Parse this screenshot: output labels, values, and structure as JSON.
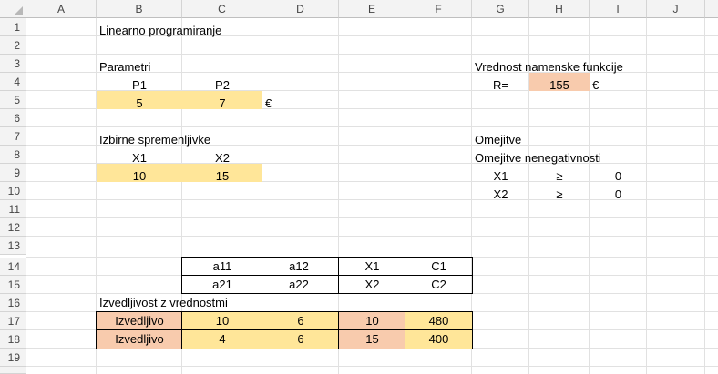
{
  "columns": [
    "A",
    "B",
    "C",
    "D",
    "E",
    "F",
    "G",
    "H",
    "I",
    "J"
  ],
  "rows": [
    "1",
    "2",
    "3",
    "4",
    "5",
    "6",
    "7",
    "8",
    "9",
    "10",
    "11",
    "12",
    "13",
    "14",
    "15",
    "16",
    "17",
    "18",
    "19"
  ],
  "cells": {
    "B1": "Linearno programiranje",
    "B3": "Parametri",
    "B4": "P1",
    "C4": "P2",
    "B5": "5",
    "C5": "7",
    "D5": "€",
    "B7": "Izbirne spremenljivke",
    "B8": "X1",
    "C8": "X2",
    "B9": "10",
    "C9": "15",
    "G3": "Vrednost namenske funkcije",
    "G4": "R=",
    "H4": "155",
    "I4": "€",
    "G7": "Omejitve",
    "G8": "Omejitve nenegativnosti",
    "G9": "X1",
    "H9": "≥",
    "I9": "0",
    "G10": "X2",
    "H10": "≥",
    "I10": "0",
    "C14": "a11",
    "D14": "a12",
    "E14": "X1",
    "F14": "C1",
    "C15": "a21",
    "D15": "a22",
    "E15": "X2",
    "F15": "C2",
    "B16": "Izvedljivost z vrednostmi",
    "B17": "Izvedljivo",
    "C17": "10",
    "D17": "6",
    "E17": "10",
    "F17": "480",
    "B18": "Izvedljivo",
    "C18": "4",
    "D18": "6",
    "E18": "15",
    "F18": "400"
  },
  "colors": {
    "yellow": "#ffe699",
    "peach": "#f8cbad"
  }
}
